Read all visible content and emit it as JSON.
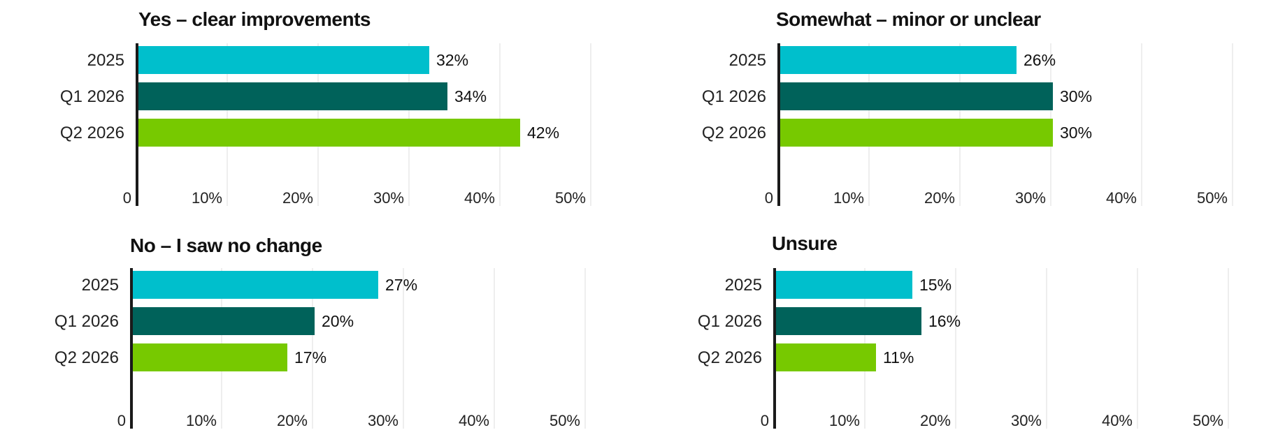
{
  "chart_data": [
    {
      "type": "bar",
      "orientation": "horizontal",
      "title": "Yes – clear improvements",
      "categories": [
        "2025",
        "Q1 2026",
        "Q2 2026"
      ],
      "values": [
        32,
        34,
        42
      ],
      "value_labels": [
        "32%",
        "34%",
        "42%"
      ],
      "colors": [
        "#00bfcc",
        "#00625a",
        "#77c900"
      ],
      "xlim": [
        0,
        50
      ],
      "x_ticks": [
        "0",
        "10%",
        "20%",
        "30%",
        "40%",
        "50%"
      ],
      "grid": true
    },
    {
      "type": "bar",
      "orientation": "horizontal",
      "title": "Somewhat – minor or unclear",
      "categories": [
        "2025",
        "Q1 2026",
        "Q2 2026"
      ],
      "values": [
        26,
        30,
        30
      ],
      "value_labels": [
        "26%",
        "30%",
        "30%"
      ],
      "colors": [
        "#00bfcc",
        "#00625a",
        "#77c900"
      ],
      "xlim": [
        0,
        50
      ],
      "x_ticks": [
        "0",
        "10%",
        "20%",
        "30%",
        "40%",
        "50%"
      ],
      "grid": true
    },
    {
      "type": "bar",
      "orientation": "horizontal",
      "title": "No – I saw no change",
      "categories": [
        "2025",
        "Q1 2026",
        "Q2 2026"
      ],
      "values": [
        27,
        20,
        17
      ],
      "value_labels": [
        "27%",
        "20%",
        "17%"
      ],
      "colors": [
        "#00bfcc",
        "#00625a",
        "#77c900"
      ],
      "xlim": [
        0,
        50
      ],
      "x_ticks": [
        "0",
        "10%",
        "20%",
        "30%",
        "40%",
        "50%"
      ],
      "grid": true
    },
    {
      "type": "bar",
      "orientation": "horizontal",
      "title": "Unsure",
      "categories": [
        "2025",
        "Q1 2026",
        "Q2 2026"
      ],
      "values": [
        15,
        16,
        11
      ],
      "value_labels": [
        "15%",
        "16%",
        "11%"
      ],
      "colors": [
        "#00bfcc",
        "#00625a",
        "#77c900"
      ],
      "xlim": [
        0,
        50
      ],
      "x_ticks": [
        "0",
        "10%",
        "20%",
        "30%",
        "40%",
        "50%"
      ],
      "grid": true
    }
  ]
}
